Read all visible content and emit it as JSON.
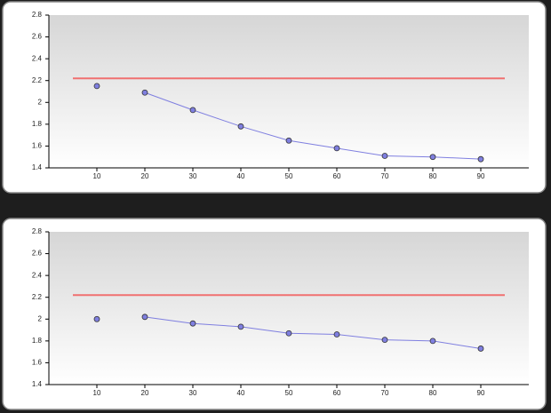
{
  "chart_data": [
    {
      "type": "line",
      "xlim": [
        0,
        100
      ],
      "xticks": [
        10,
        20,
        30,
        40,
        50,
        60,
        70,
        80,
        90
      ],
      "ylim": [
        1.4,
        2.8
      ],
      "yticks": [
        1.4,
        1.6,
        1.8,
        2,
        2.2,
        2.4,
        2.6,
        2.8
      ],
      "reference_line": {
        "value": 2.22,
        "xrange": [
          5,
          95
        ],
        "color": "#f07070"
      },
      "series": [
        {
          "color": "#7f7fe0",
          "line": false,
          "x": [
            10
          ],
          "values": [
            2.15
          ]
        },
        {
          "color": "#7f7fe0",
          "line": true,
          "x": [
            20,
            30,
            40,
            50,
            60,
            70,
            80,
            90
          ],
          "values": [
            2.09,
            1.93,
            1.78,
            1.65,
            1.58,
            1.51,
            1.5,
            1.48
          ]
        }
      ]
    },
    {
      "type": "line",
      "xlim": [
        0,
        100
      ],
      "xticks": [
        10,
        20,
        30,
        40,
        50,
        60,
        70,
        80,
        90
      ],
      "ylim": [
        1.4,
        2.8
      ],
      "yticks": [
        1.4,
        1.6,
        1.8,
        2,
        2.2,
        2.4,
        2.6,
        2.8
      ],
      "reference_line": {
        "value": 2.22,
        "xrange": [
          5,
          95
        ],
        "color": "#f07070"
      },
      "series": [
        {
          "color": "#7f7fe0",
          "line": false,
          "x": [
            10
          ],
          "values": [
            2.0
          ]
        },
        {
          "color": "#7f7fe0",
          "line": true,
          "x": [
            20,
            30,
            40,
            50,
            60,
            70,
            80,
            90
          ],
          "values": [
            2.02,
            1.96,
            1.93,
            1.87,
            1.86,
            1.81,
            1.8,
            1.73
          ]
        }
      ]
    }
  ]
}
